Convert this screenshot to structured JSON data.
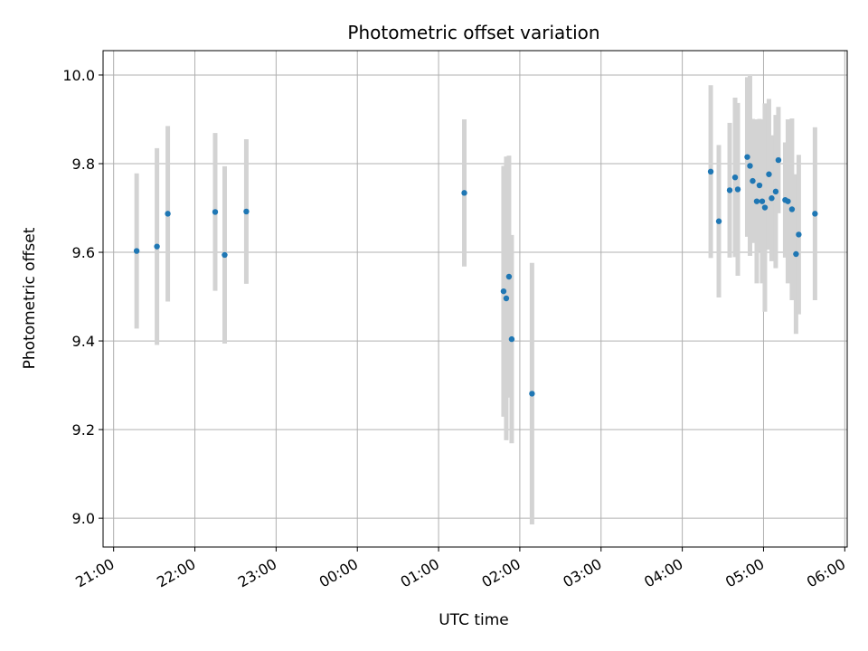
{
  "chart_data": {
    "type": "scatter",
    "title": "Photometric offset variation",
    "xlabel": "UTC time",
    "ylabel": "Photometric offset",
    "grid": true,
    "x_ticks": [
      "21:00",
      "22:00",
      "23:00",
      "00:00",
      "01:00",
      "02:00",
      "03:00",
      "04:00",
      "05:00",
      "06:00"
    ],
    "x_range_hours_from_first_tick": [
      -0.13,
      9.03
    ],
    "y_ticks": [
      "9.0",
      "9.2",
      "9.4",
      "9.6",
      "9.8",
      "10.0"
    ],
    "ylim": [
      8.935,
      10.055
    ],
    "colors": {
      "point": "#1f77b4",
      "errorbar": "#d3d3d3",
      "grid": "#b0b0b0"
    },
    "points": [
      {
        "t": "21:17",
        "y": 9.603,
        "err": 0.175
      },
      {
        "t": "21:32",
        "y": 9.613,
        "err": 0.222
      },
      {
        "t": "21:40",
        "y": 9.687,
        "err": 0.198
      },
      {
        "t": "22:15",
        "y": 9.691,
        "err": 0.178
      },
      {
        "t": "22:22",
        "y": 9.594,
        "err": 0.2
      },
      {
        "t": "22:38",
        "y": 9.692,
        "err": 0.163
      },
      {
        "t": "01:19",
        "y": 9.734,
        "err": 0.166
      },
      {
        "t": "01:48",
        "y": 9.512,
        "err": 0.283
      },
      {
        "t": "01:50",
        "y": 9.496,
        "err": 0.32
      },
      {
        "t": "01:52",
        "y": 9.545,
        "err": 0.273
      },
      {
        "t": "01:54",
        "y": 9.404,
        "err": 0.235
      },
      {
        "t": "02:09",
        "y": 9.281,
        "err": 0.295
      },
      {
        "t": "04:21",
        "y": 9.782,
        "err": 0.195
      },
      {
        "t": "04:27",
        "y": 9.67,
        "err": 0.172
      },
      {
        "t": "04:35",
        "y": 9.74,
        "err": 0.152
      },
      {
        "t": "04:39",
        "y": 9.769,
        "err": 0.18
      },
      {
        "t": "04:41",
        "y": 9.742,
        "err": 0.195
      },
      {
        "t": "04:48",
        "y": 9.815,
        "err": 0.18
      },
      {
        "t": "04:50",
        "y": 9.795,
        "err": 0.203
      },
      {
        "t": "04:52",
        "y": 9.761,
        "err": 0.14
      },
      {
        "t": "04:55",
        "y": 9.715,
        "err": 0.185
      },
      {
        "t": "04:57",
        "y": 9.751,
        "err": 0.15
      },
      {
        "t": "04:59",
        "y": 9.715,
        "err": 0.185
      },
      {
        "t": "05:01",
        "y": 9.701,
        "err": 0.235
      },
      {
        "t": "05:04",
        "y": 9.776,
        "err": 0.17
      },
      {
        "t": "05:06",
        "y": 9.722,
        "err": 0.142
      },
      {
        "t": "05:09",
        "y": 9.737,
        "err": 0.173
      },
      {
        "t": "05:11",
        "y": 9.808,
        "err": 0.12
      },
      {
        "t": "05:16",
        "y": 9.718,
        "err": 0.13
      },
      {
        "t": "05:18",
        "y": 9.715,
        "err": 0.185
      },
      {
        "t": "05:21",
        "y": 9.697,
        "err": 0.205
      },
      {
        "t": "05:24",
        "y": 9.596,
        "err": 0.18
      },
      {
        "t": "05:26",
        "y": 9.64,
        "err": 0.18
      },
      {
        "t": "05:38",
        "y": 9.687,
        "err": 0.195
      }
    ]
  }
}
